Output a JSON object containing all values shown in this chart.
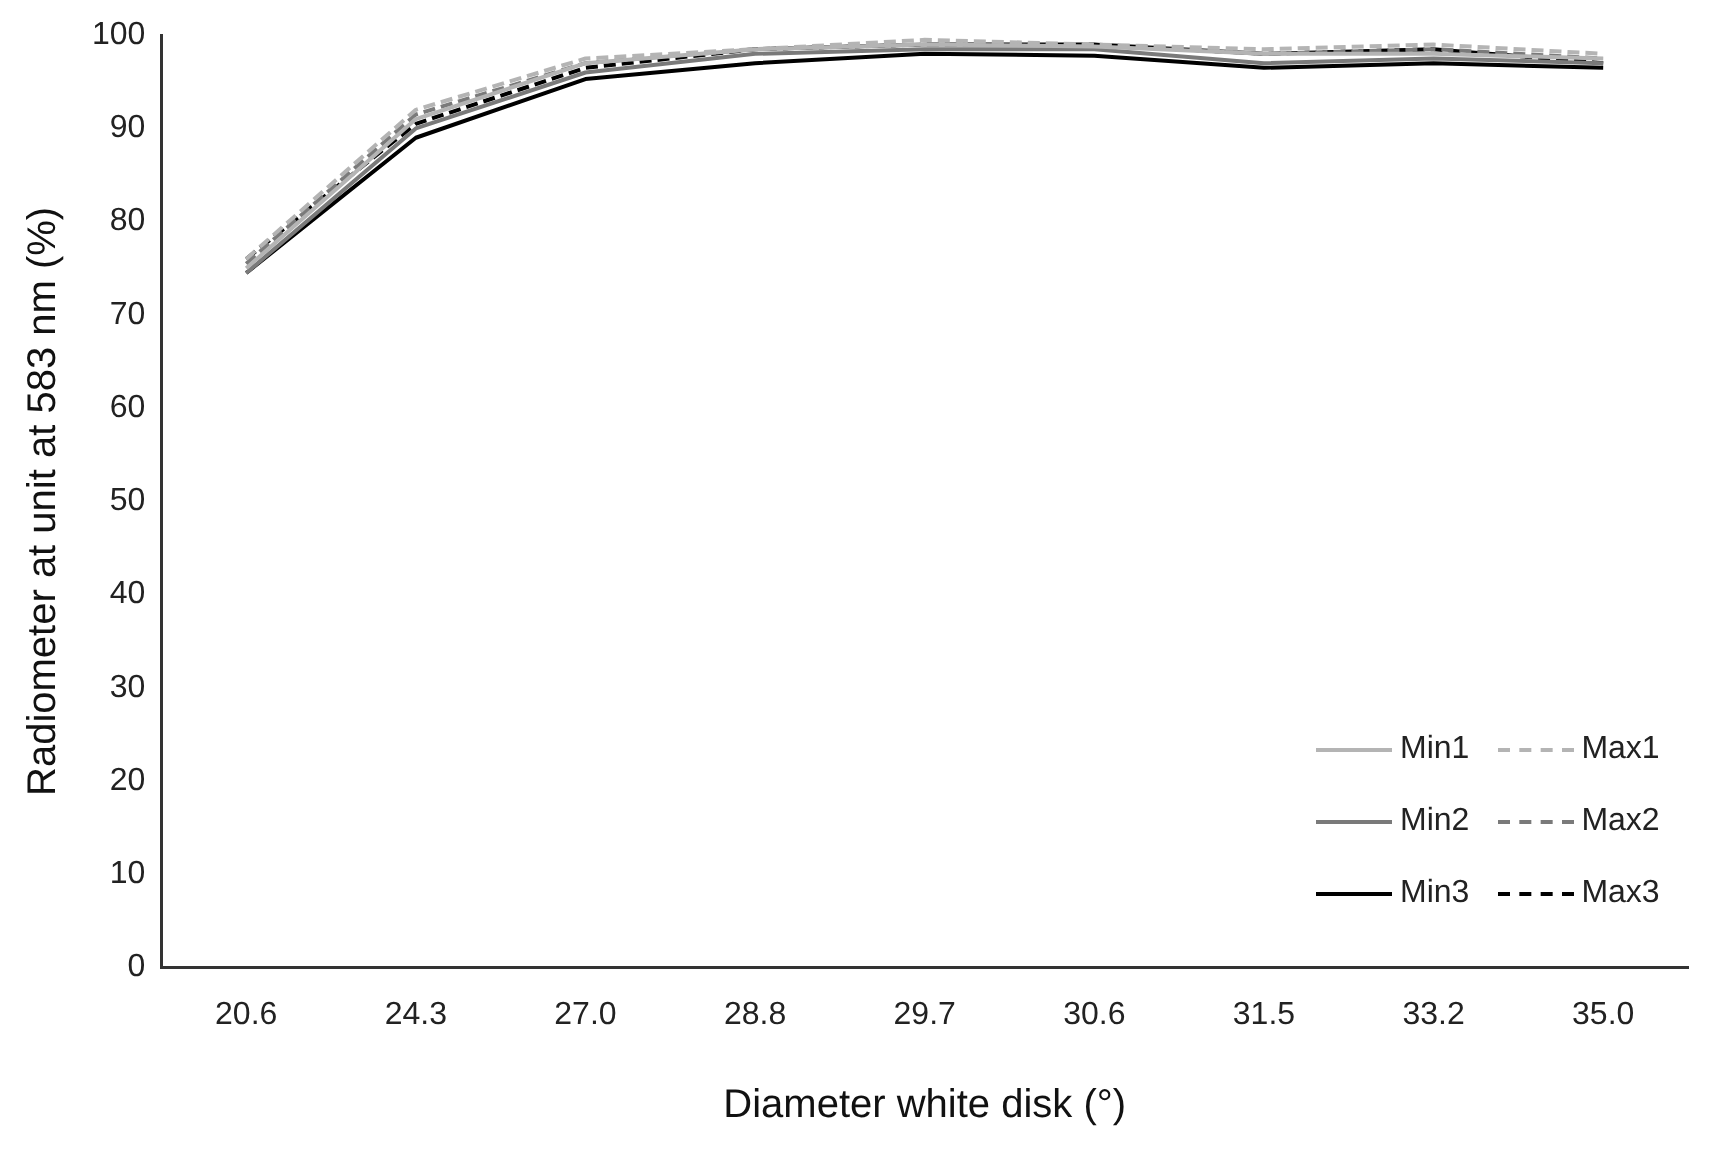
{
  "chart_data": {
    "type": "line",
    "xlabel": "Diameter white disk (°)",
    "ylabel": "Radiometer at unit at 583 nm (%)",
    "categories": [
      "20.6",
      "24.3",
      "27.0",
      "28.8",
      "29.7",
      "30.6",
      "31.5",
      "33.2",
      "35.0"
    ],
    "ylim": [
      0,
      100
    ],
    "yticks": [
      0,
      10,
      20,
      30,
      40,
      50,
      60,
      70,
      80,
      90,
      100
    ],
    "grid": false,
    "legend": "bottom right",
    "marker": "none",
    "series": [
      {
        "name": "Min1",
        "color": "#b4b4b4",
        "line_style": "solid",
        "values": [
          75,
          91,
          97,
          98.5,
          99,
          98.8,
          98,
          98,
          97.5
        ]
      },
      {
        "name": "Max1",
        "color": "#b4b4b4",
        "line_style": "dashed",
        "values": [
          76,
          92,
          97.5,
          98.5,
          99.5,
          99,
          98.5,
          99,
          98
        ]
      },
      {
        "name": "Min2",
        "color": "#7a7a7a",
        "line_style": "solid",
        "values": [
          74.5,
          90,
          96,
          98,
          98.5,
          98.5,
          97,
          97.5,
          97
        ]
      },
      {
        "name": "Max2",
        "color": "#7a7a7a",
        "line_style": "dashed",
        "values": [
          75.5,
          91.5,
          97,
          98.5,
          99,
          99,
          98,
          98.5,
          97.5
        ]
      },
      {
        "name": "Min3",
        "color": "#000000",
        "line_style": "solid",
        "values": [
          74.5,
          89,
          95.3,
          97,
          98,
          97.8,
          96.5,
          97,
          96.5
        ]
      },
      {
        "name": "Max3",
        "color": "#000000",
        "line_style": "dashed",
        "values": [
          76,
          90.5,
          96.5,
          98.5,
          99,
          99,
          98,
          98.5,
          97
        ]
      }
    ]
  }
}
